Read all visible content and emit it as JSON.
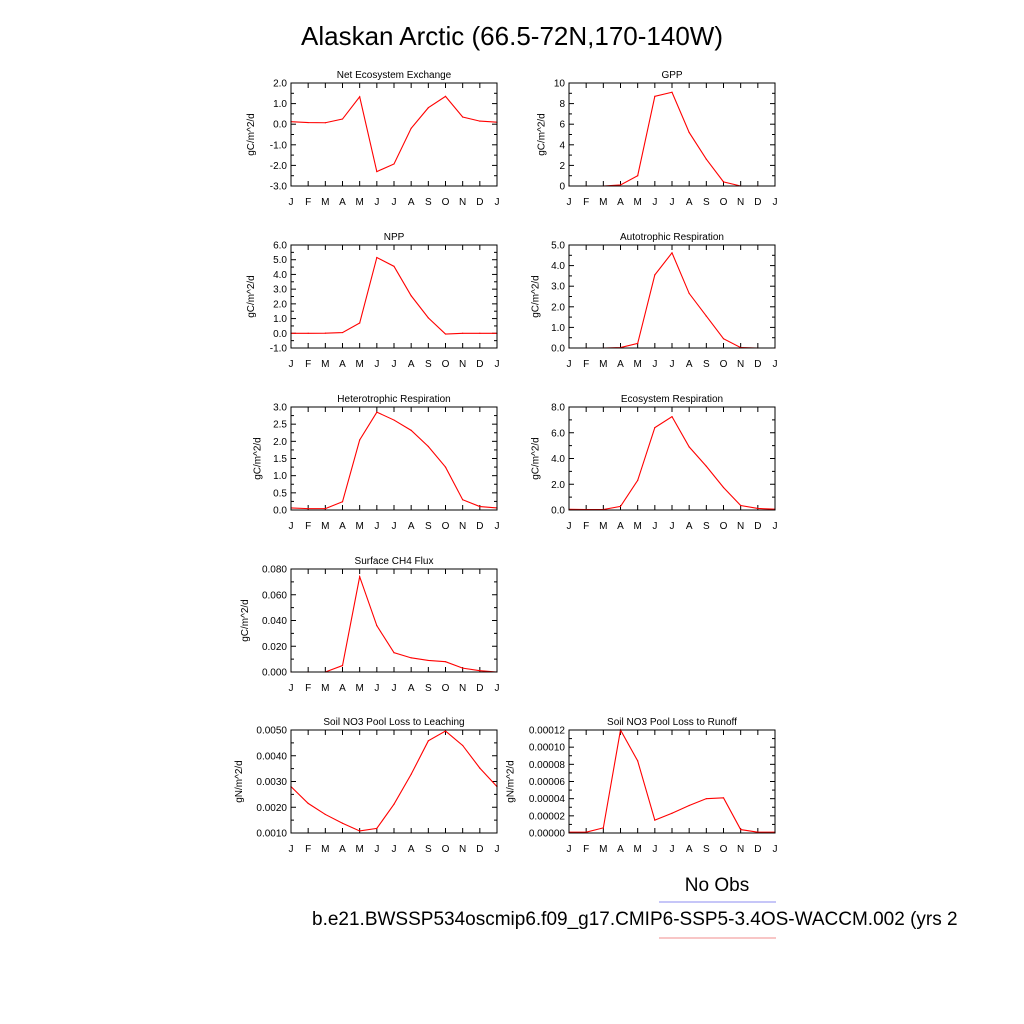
{
  "figure": {
    "title": "Alaskan Arctic (66.5-72N,170-140W)",
    "legend_label": "No Obs",
    "legend_colors": [
      "#8c8cf0",
      "#f08c8c"
    ],
    "caption": "b.e21.BWSSP534oscmip6.f09_g17.CMIP6-SSP5-3.4OS-WACCM.002 (yrs 2",
    "series_color": "#ff0000"
  },
  "chart_data": [
    {
      "type": "line",
      "title": "Net Ecosystem Exchange",
      "ylabel": "gC/m^2/d",
      "categories": [
        "J",
        "F",
        "M",
        "A",
        "M",
        "J",
        "J",
        "A",
        "S",
        "O",
        "N",
        "D",
        "J"
      ],
      "values": [
        0.12,
        0.08,
        0.07,
        0.25,
        1.33,
        -2.3,
        -1.93,
        -0.2,
        0.8,
        1.35,
        0.35,
        0.15,
        0.1
      ],
      "ylim": [
        -3.0,
        2.0
      ],
      "yticks": [
        -3.0,
        -2.0,
        -1.0,
        0.0,
        1.0,
        2.0
      ],
      "ytick_labels": [
        "-3.0",
        "-2.0",
        "-1.0",
        "0.0",
        "1.0",
        "2.0"
      ]
    },
    {
      "type": "line",
      "title": "GPP",
      "ylabel": "gC/m^2/d",
      "categories": [
        "J",
        "F",
        "M",
        "A",
        "M",
        "J",
        "J",
        "A",
        "S",
        "O",
        "N",
        "D",
        "J"
      ],
      "values": [
        0,
        0,
        0,
        0.1,
        1.0,
        8.7,
        9.1,
        5.2,
        2.6,
        0.4,
        0,
        0,
        0
      ],
      "ylim": [
        0,
        10
      ],
      "yticks": [
        0,
        2,
        4,
        6,
        8,
        10
      ],
      "ytick_labels": [
        "0",
        "2",
        "4",
        "6",
        "8",
        "10"
      ]
    },
    {
      "type": "line",
      "title": "NPP",
      "ylabel": "gC/m^2/d",
      "categories": [
        "J",
        "F",
        "M",
        "A",
        "M",
        "J",
        "J",
        "A",
        "S",
        "O",
        "N",
        "D",
        "J"
      ],
      "values": [
        0,
        0,
        0.01,
        0.05,
        0.7,
        5.15,
        4.55,
        2.55,
        1.05,
        -0.05,
        0,
        0,
        0
      ],
      "ylim": [
        -1.0,
        6.0
      ],
      "yticks": [
        -1.0,
        0.0,
        1.0,
        2.0,
        3.0,
        4.0,
        5.0,
        6.0
      ],
      "ytick_labels": [
        "-1.0",
        "0.0",
        "1.0",
        "2.0",
        "3.0",
        "4.0",
        "5.0",
        "6.0"
      ]
    },
    {
      "type": "line",
      "title": "Autotrophic Respiration",
      "ylabel": "gC/m^2/d",
      "categories": [
        "J",
        "F",
        "M",
        "A",
        "M",
        "J",
        "J",
        "A",
        "S",
        "O",
        "N",
        "D",
        "J"
      ],
      "values": [
        0,
        0,
        0,
        0.02,
        0.22,
        3.55,
        4.62,
        2.65,
        1.55,
        0.45,
        0.02,
        0,
        0
      ],
      "ylim": [
        0,
        5.0
      ],
      "yticks": [
        0.0,
        1.0,
        2.0,
        3.0,
        4.0,
        5.0
      ],
      "ytick_labels": [
        "0.0",
        "1.0",
        "2.0",
        "3.0",
        "4.0",
        "5.0"
      ]
    },
    {
      "type": "line",
      "title": "Heterotrophic Respiration",
      "ylabel": "gC/m^2/d",
      "categories": [
        "J",
        "F",
        "M",
        "A",
        "M",
        "J",
        "J",
        "A",
        "S",
        "O",
        "N",
        "D",
        "J"
      ],
      "values": [
        0.06,
        0.04,
        0.04,
        0.24,
        2.04,
        2.85,
        2.62,
        2.32,
        1.85,
        1.25,
        0.3,
        0.1,
        0.06
      ],
      "ylim": [
        0,
        3.0
      ],
      "yticks": [
        0.0,
        0.5,
        1.0,
        1.5,
        2.0,
        2.5,
        3.0
      ],
      "ytick_labels": [
        "0.0",
        "0.5",
        "1.0",
        "1.5",
        "2.0",
        "2.5",
        "3.0"
      ]
    },
    {
      "type": "line",
      "title": "Ecosystem Respiration",
      "ylabel": "gC/m^2/d",
      "categories": [
        "J",
        "F",
        "M",
        "A",
        "M",
        "J",
        "J",
        "A",
        "S",
        "O",
        "N",
        "D",
        "J"
      ],
      "values": [
        0.05,
        0.04,
        0.04,
        0.28,
        2.3,
        6.4,
        7.25,
        4.9,
        3.4,
        1.75,
        0.35,
        0.12,
        0.06
      ],
      "ylim": [
        0,
        8.0
      ],
      "yticks": [
        0.0,
        2.0,
        4.0,
        6.0,
        8.0
      ],
      "ytick_labels": [
        "0.0",
        "2.0",
        "4.0",
        "6.0",
        "8.0"
      ]
    },
    {
      "type": "line",
      "title": "Surface CH4 Flux",
      "ylabel": "gC/m^2/d",
      "categories": [
        "J",
        "F",
        "M",
        "A",
        "M",
        "J",
        "J",
        "A",
        "S",
        "O",
        "N",
        "D",
        "J"
      ],
      "values": [
        0,
        0,
        0,
        0.005,
        0.074,
        0.036,
        0.015,
        0.011,
        0.009,
        0.008,
        0.003,
        0.001,
        0
      ],
      "ylim": [
        0,
        0.08
      ],
      "yticks": [
        0.0,
        0.02,
        0.04,
        0.06,
        0.08
      ],
      "ytick_labels": [
        "0.000",
        "0.020",
        "0.040",
        "0.060",
        "0.080"
      ]
    },
    {
      "type": "line",
      "title": "Soil NO3 Pool Loss to Leaching",
      "ylabel": "gN/m^2/d",
      "categories": [
        "J",
        "F",
        "M",
        "A",
        "M",
        "J",
        "J",
        "A",
        "S",
        "O",
        "N",
        "D",
        "J"
      ],
      "values": [
        0.0028,
        0.00215,
        0.00172,
        0.00138,
        0.00108,
        0.00118,
        0.00212,
        0.00328,
        0.00458,
        0.00496,
        0.0044,
        0.00352,
        0.0028
      ],
      "ylim": [
        0.001,
        0.005
      ],
      "yticks": [
        0.001,
        0.002,
        0.003,
        0.004,
        0.005
      ],
      "ytick_labels": [
        "0.0010",
        "0.0020",
        "0.0030",
        "0.0040",
        "0.0050"
      ]
    },
    {
      "type": "line",
      "title": "Soil NO3 Pool Loss to Runoff",
      "ylabel": "gN/m^2/d",
      "categories": [
        "J",
        "F",
        "M",
        "A",
        "M",
        "J",
        "J",
        "A",
        "S",
        "O",
        "N",
        "D",
        "J"
      ],
      "values": [
        1e-06,
        1e-06,
        6e-06,
        0.00012,
        8.4e-05,
        1.5e-05,
        2.3e-05,
        3.2e-05,
        4e-05,
        4.1e-05,
        4e-06,
        1e-06,
        1e-06
      ],
      "ylim": [
        0,
        0.00012
      ],
      "yticks": [
        0,
        2e-05,
        4e-05,
        6e-05,
        8e-05,
        0.0001,
        0.00012
      ],
      "ytick_labels": [
        "0.00000",
        "0.00002",
        "0.00004",
        "0.00006",
        "0.00008",
        "0.00010",
        "0.00012"
      ]
    }
  ]
}
